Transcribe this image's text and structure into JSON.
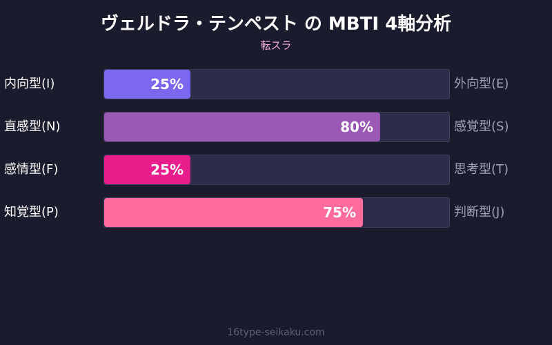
{
  "header": {
    "title": "ヴェルドラ・テンペスト の MBTI 4軸分析",
    "subtitle": "転スラ"
  },
  "chart_data": {
    "type": "bar",
    "orientation": "horizontal",
    "xlim": [
      0,
      100
    ],
    "unit": "%",
    "rows": [
      {
        "left_label": "内向型(I)",
        "right_label": "外向型(E)",
        "value": 25,
        "value_label": "25%",
        "color": "#7b68ee"
      },
      {
        "left_label": "直感型(N)",
        "right_label": "感覚型(S)",
        "value": 80,
        "value_label": "80%",
        "color": "#9b59b6"
      },
      {
        "left_label": "感情型(F)",
        "right_label": "思考型(T)",
        "value": 25,
        "value_label": "25%",
        "color": "#e91e8c"
      },
      {
        "left_label": "知覚型(P)",
        "right_label": "判断型(J)",
        "value": 75,
        "value_label": "75%",
        "color": "#ff6b9d"
      }
    ]
  },
  "footer": {
    "text": "16type-seikaku.com"
  }
}
